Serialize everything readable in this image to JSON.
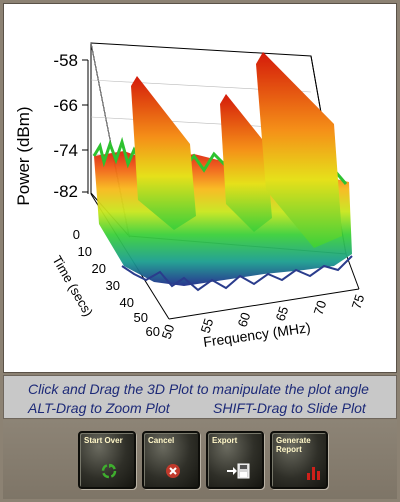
{
  "plot": {
    "y_axis_label": "Power (dBm)",
    "y_ticks": [
      "-58",
      "-66",
      "-74",
      "-82"
    ],
    "time_axis_label": "Time (secs)",
    "time_ticks": [
      "0",
      "10",
      "20",
      "30",
      "40",
      "50",
      "60"
    ],
    "freq_axis_label": "Frequency (MHz)",
    "freq_ticks": [
      "50",
      "55",
      "60",
      "65",
      "70",
      "75"
    ]
  },
  "instructions": {
    "line1": "Click and Drag the 3D Plot to manipulate the plot angle",
    "line2_left": "ALT-Drag to Zoom Plot",
    "line2_right": "SHIFT-Drag to Slide Plot"
  },
  "toolbar": {
    "start_over": "Start Over",
    "cancel": "Cancel",
    "export": "Export",
    "generate_report": "Generate Report"
  },
  "colors": {
    "instruction_text": "#1d2a78",
    "button_label": "#fff7c8",
    "start_over_icon": "#3fae2e",
    "cancel_icon": "#c0392b",
    "report_icon": "#d0201a"
  },
  "icons": {
    "start_over": "recycle-icon",
    "cancel": "cancel-x-icon",
    "export": "export-disk-icon",
    "generate_report": "bar-chart-icon"
  }
}
